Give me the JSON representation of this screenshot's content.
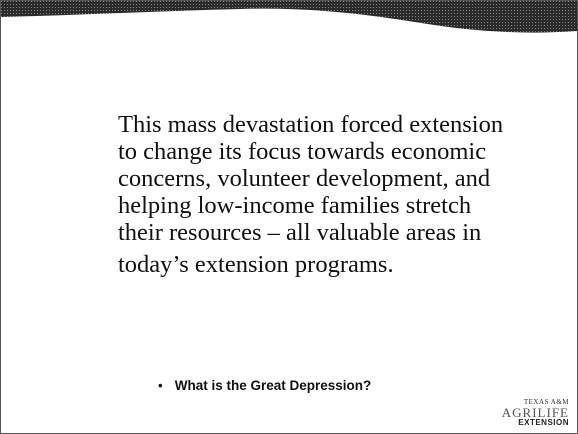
{
  "slide": {
    "body_lines": [
      "This mass devastation forced extension",
      "to change its focus towards economic",
      "concerns, volunteer development, and",
      "helping low-income families stretch",
      "their resources – all valuable areas in",
      "today’s extension programs."
    ],
    "bullet": "What is the Great Depression?",
    "logo": {
      "top": "TEXAS A&M",
      "middle": "AGRILIFE",
      "bottom": "EXTENSION"
    }
  }
}
